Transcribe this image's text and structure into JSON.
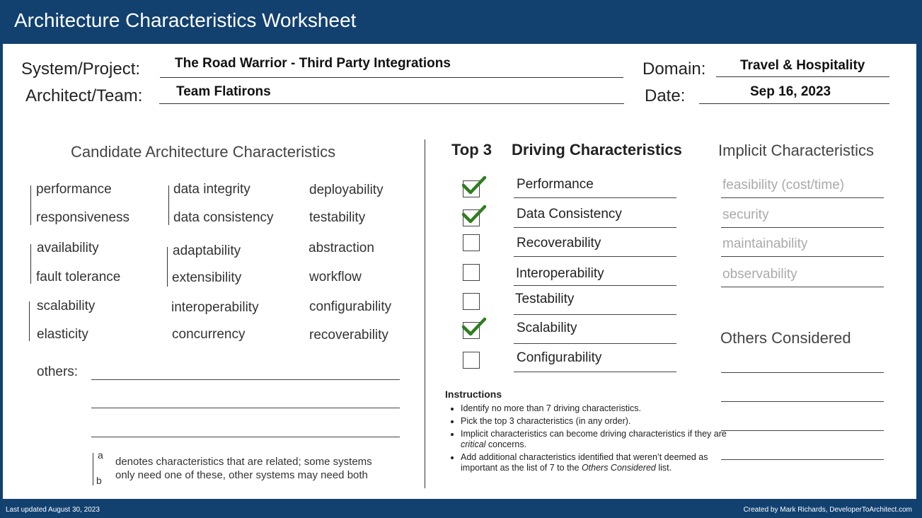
{
  "title": "Architecture Characteristics Worksheet",
  "header": {
    "system_label": "System/Project:",
    "system_value": "The Road Warrior -  Third Party Integrations",
    "architect_label": "Architect/Team:",
    "architect_value": "Team Flatirons",
    "domain_label": "Domain:",
    "domain_value": "Travel & Hospitality",
    "date_label": "Date:",
    "date_value": "Sep 16, 2023"
  },
  "candidate": {
    "title": "Candidate Architecture Characteristics",
    "col1": [
      "performance",
      "responsiveness",
      "availability",
      "fault tolerance",
      "scalability",
      "elasticity"
    ],
    "col2": [
      "data integrity",
      "data consistency",
      "adaptability",
      "extensibility",
      "interoperability",
      "concurrency"
    ],
    "col3": [
      "deployability",
      "testability",
      "abstraction",
      "workflow",
      "configurability",
      "recoverability"
    ],
    "others_label": "others:"
  },
  "legend": {
    "a": "a",
    "b": "b",
    "line1": "denotes characteristics that are related; some systems",
    "line2": "only need one of these, other systems may need both"
  },
  "driving": {
    "top3_label": "Top 3",
    "title": "Driving Characteristics",
    "items": [
      {
        "label": "Performance",
        "checked": true
      },
      {
        "label": "Data Consistency",
        "checked": true
      },
      {
        "label": "Recoverability",
        "checked": false
      },
      {
        "label": "Interoperability",
        "checked": false
      },
      {
        "label": "Testability",
        "checked": false
      },
      {
        "label": "Scalability",
        "checked": true
      },
      {
        "label": "Configurability",
        "checked": false
      }
    ],
    "check_color": "#2e7d1e"
  },
  "implicit": {
    "title": "Implicit Characteristics",
    "items": [
      "feasibility (cost/time)",
      "security",
      "maintainability",
      "observability"
    ]
  },
  "others_considered": {
    "title": "Others Considered"
  },
  "instructions": {
    "title": "Instructions",
    "b1": "Identify no more than 7 driving characteristics.",
    "b2": "Pick the top 3 characteristics (in any order).",
    "b3_pre": "Implicit characteristics can become driving characteristics if they are ",
    "b3_em": "critical",
    "b3_post": " concerns.",
    "b4_pre": "Add additional characteristics identified that weren’t deemed as important as the list of 7 to the ",
    "b4_em": "Others Considered",
    "b4_post": " list."
  },
  "footer": {
    "left": "Last updated August 30, 2023",
    "right": "Created by Mark Richards, DeveloperToArchitect.com"
  },
  "colors": {
    "brand_blue": "#124170",
    "implicit_gray": "#aaaaaa"
  }
}
